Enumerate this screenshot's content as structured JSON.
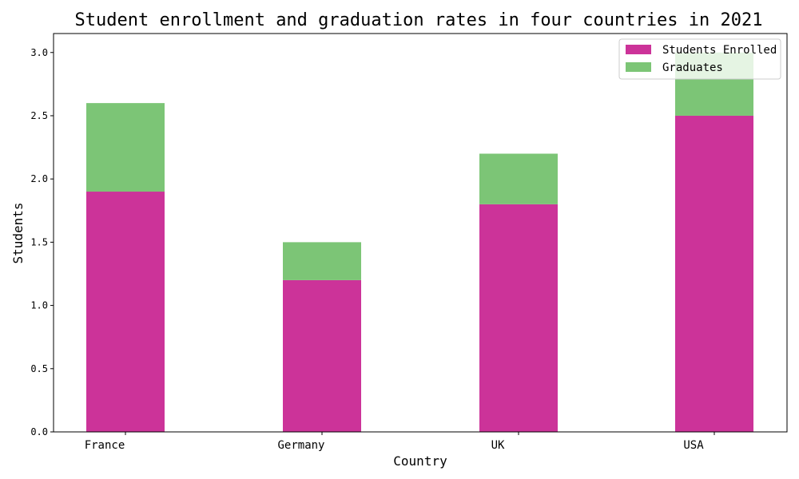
{
  "chart_data": {
    "type": "bar",
    "stacked": true,
    "title": "Student enrollment and graduation rates in four countries in 2021",
    "xlabel": "Country",
    "ylabel": "Students",
    "categories": [
      "France",
      "Germany",
      "UK",
      "USA"
    ],
    "series": [
      {
        "name": "Students Enrolled",
        "values": [
          1.9,
          1.2,
          1.8,
          2.5
        ],
        "color": "#cc3399"
      },
      {
        "name": "Graduates",
        "values": [
          0.7,
          0.3,
          0.4,
          0.5
        ],
        "color": "#7cc576"
      }
    ],
    "ylim": [
      0,
      3.15
    ],
    "yticks": [
      "0.0",
      "0.5",
      "1.0",
      "1.5",
      "2.0",
      "2.5",
      "3.0"
    ],
    "grid": false,
    "legend_position": "top-right"
  }
}
